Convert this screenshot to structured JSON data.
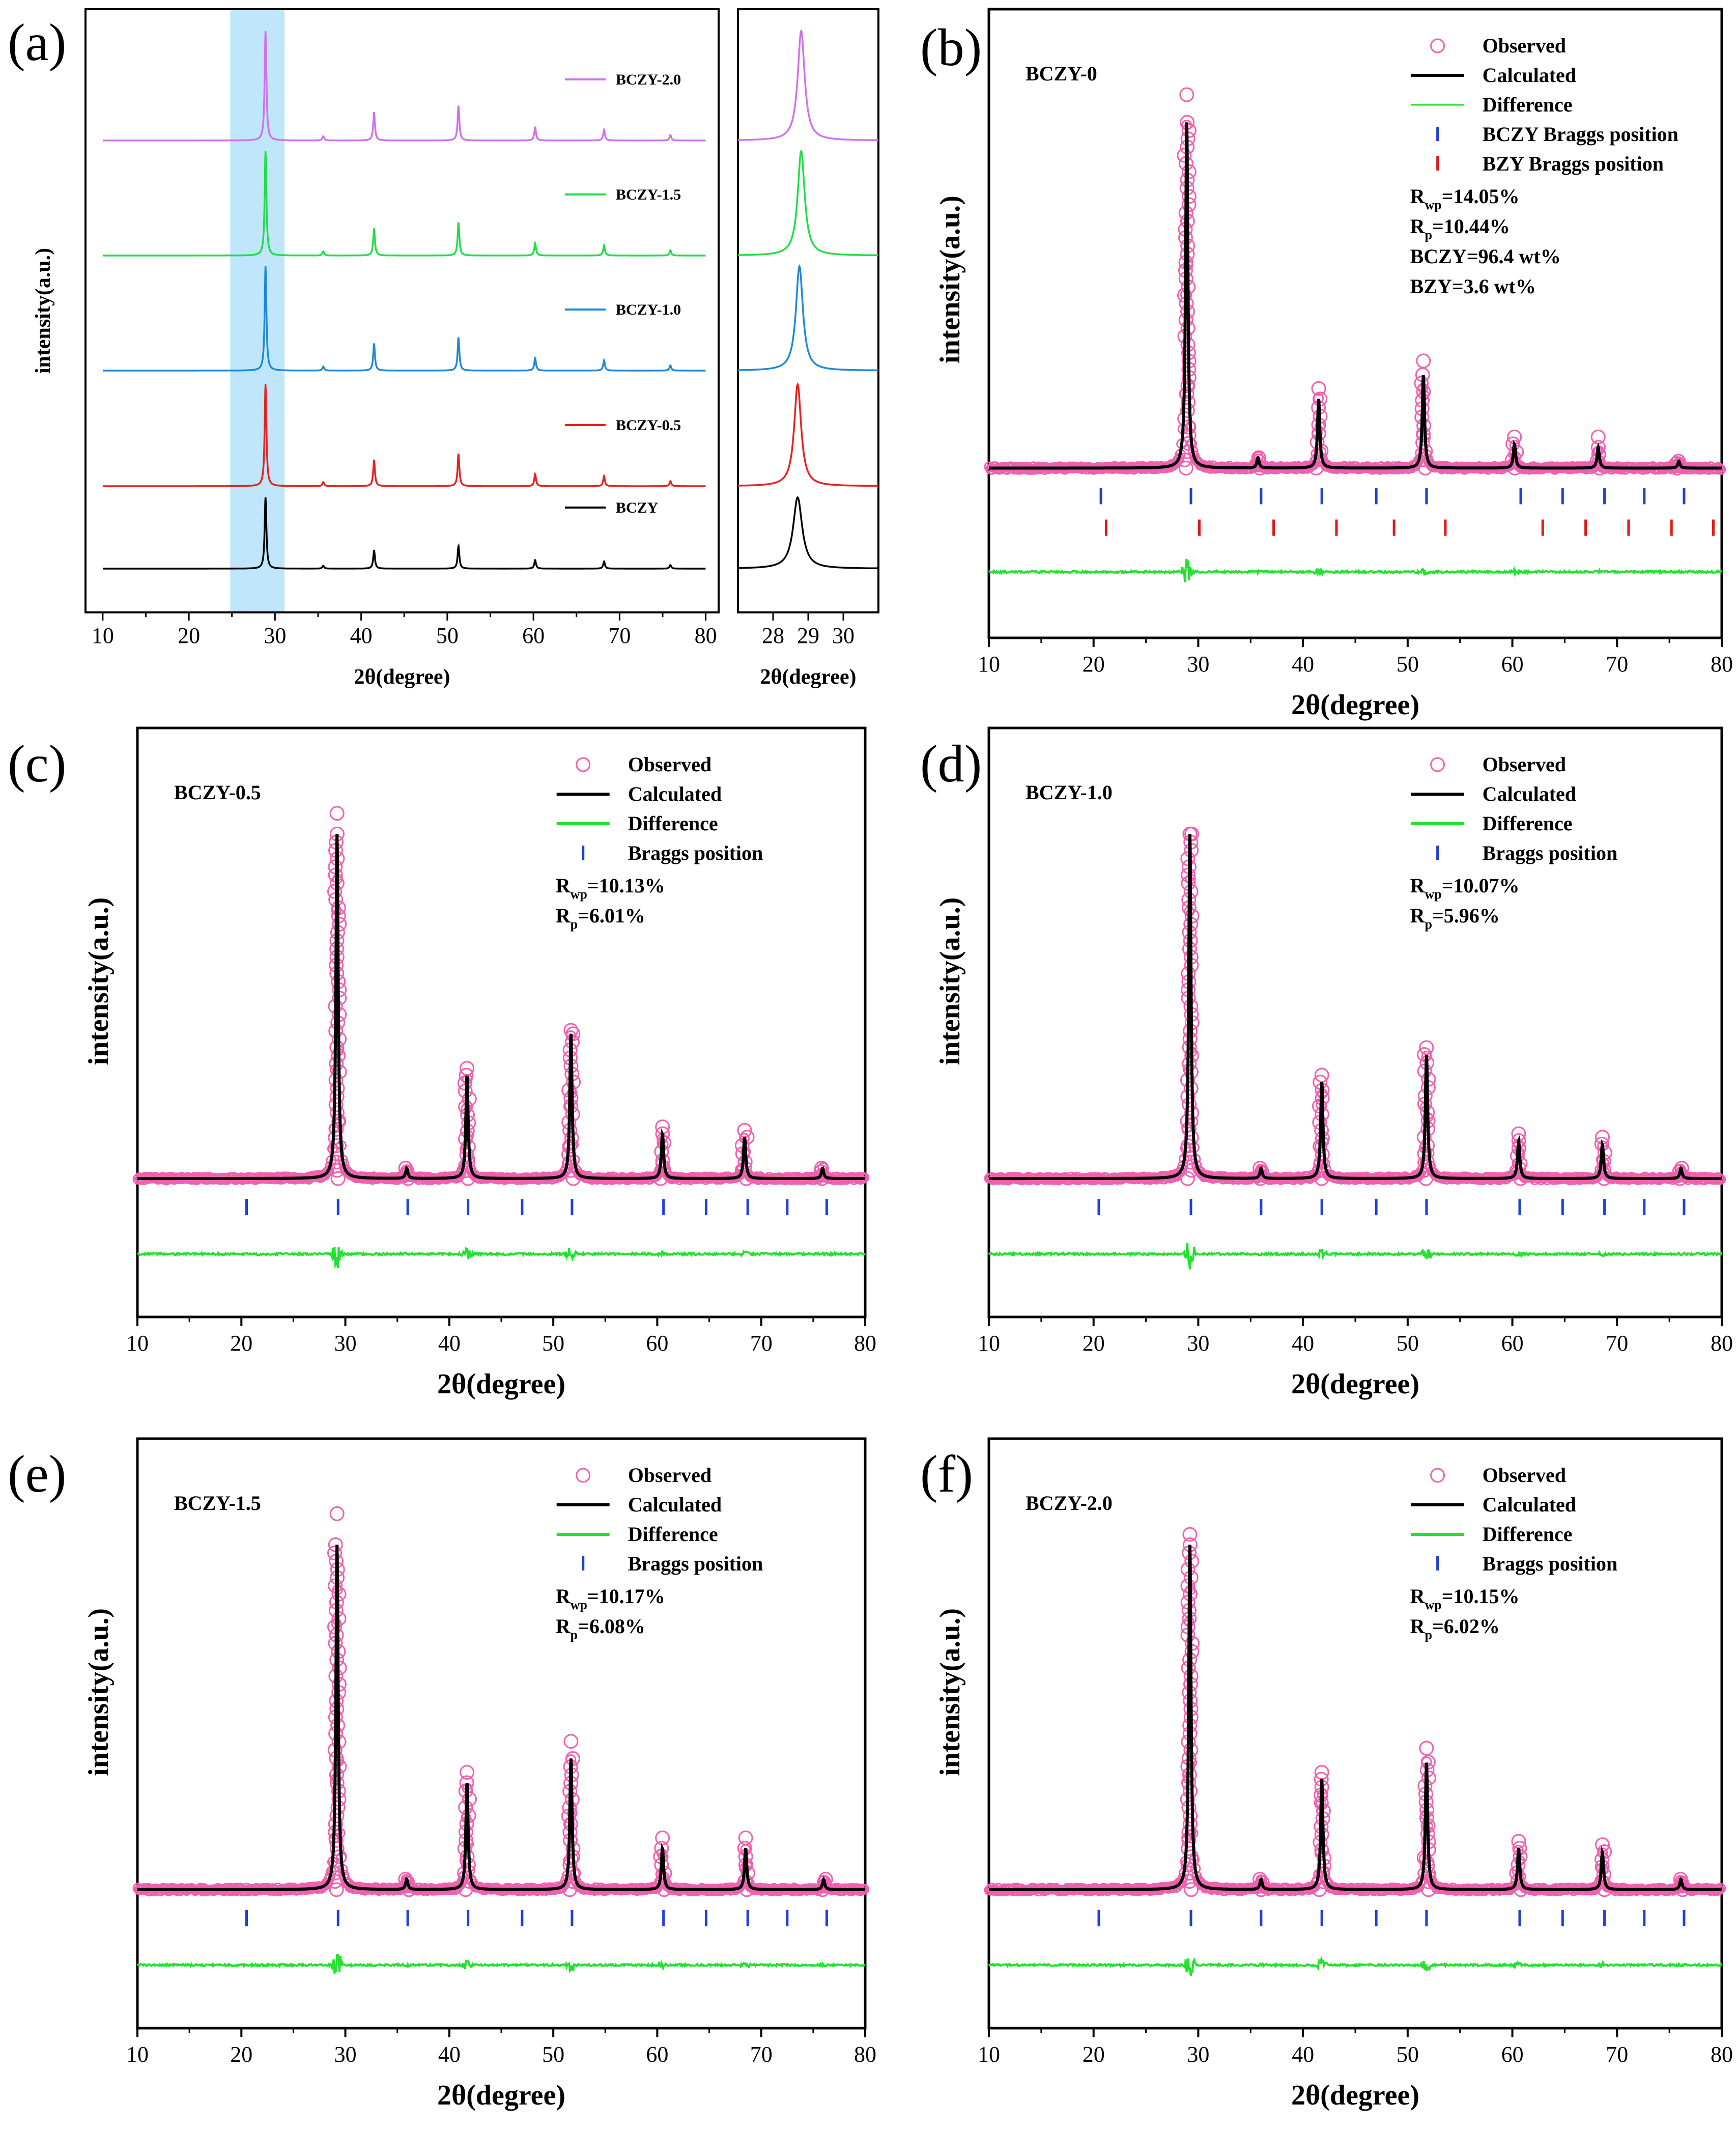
{
  "colors": {
    "observed": "#f060b0",
    "calculated": "#000000",
    "difference": "#22e22e",
    "bragg_bczy": "#1f3fd8",
    "bragg_bzy": "#e01818",
    "highlight": "#bfe6fb",
    "s_bczy": "#000000",
    "s_05": "#e82020",
    "s_10": "#1e88d8",
    "s_15": "#22dd44",
    "s_20": "#d070f0"
  },
  "chart_data": [
    {
      "panel": "(a)",
      "type": "line",
      "xlabel": "2θ(degree)",
      "ylabel": "intensity(a.u.)",
      "xlim": [
        10,
        80
      ],
      "xticks": [
        "10",
        "20",
        "30",
        "40",
        "50",
        "60",
        "70",
        "80"
      ],
      "highlight_range": [
        26,
        32
      ],
      "inset": {
        "xlim": [
          27,
          31
        ],
        "xticks": [
          "28",
          "29",
          "30"
        ]
      },
      "peaks": [
        {
          "x": 28.9,
          "rel": 1.0
        },
        {
          "x": 35.6,
          "rel": 0.04
        },
        {
          "x": 41.5,
          "rel": 0.26
        },
        {
          "x": 51.3,
          "rel": 0.32
        },
        {
          "x": 60.2,
          "rel": 0.12
        },
        {
          "x": 68.2,
          "rel": 0.1
        },
        {
          "x": 75.9,
          "rel": 0.05
        }
      ],
      "series": [
        {
          "name": "BCZY-2.0",
          "inset_peak": 28.8
        },
        {
          "name": "BCZY-1.5",
          "inset_peak": 28.8
        },
        {
          "name": "BCZY-1.0",
          "inset_peak": 28.75
        },
        {
          "name": "BCZY-0.5",
          "inset_peak": 28.7
        },
        {
          "name": "BCZY",
          "inset_peak": 28.7
        }
      ]
    },
    {
      "panel": "(b)",
      "type": "scatter",
      "sample": "BCZY-0",
      "xlabel": "2θ(degree)",
      "ylabel": "intensity(a.u.)",
      "xlim": [
        10,
        80
      ],
      "xticks": [
        "10",
        "20",
        "30",
        "40",
        "50",
        "60",
        "70",
        "80"
      ],
      "legend": [
        {
          "label": "Observed",
          "kind": "circle"
        },
        {
          "label": "Calculated",
          "kind": "line_black"
        },
        {
          "label": "Difference",
          "kind": "line_green"
        },
        {
          "label": "BCZY Braggs position",
          "kind": "tick_blue"
        },
        {
          "label": "BZY Braggs position",
          "kind": "tick_red"
        }
      ],
      "stats": [
        {
          "main": "R",
          "sub": "wp",
          "rest": "=14.05%"
        },
        {
          "main": "R",
          "sub": "p",
          "rest": "=10.44%"
        },
        {
          "main": "BCZY=96.4 wt%",
          "sub": "",
          "rest": ""
        },
        {
          "main": "BZY=3.6 wt%",
          "sub": "",
          "rest": ""
        }
      ],
      "peaks": [
        {
          "x": 28.9,
          "rel": 1.0
        },
        {
          "x": 35.7,
          "rel": 0.03
        },
        {
          "x": 41.5,
          "rel": 0.2
        },
        {
          "x": 51.5,
          "rel": 0.27
        },
        {
          "x": 60.2,
          "rel": 0.07
        },
        {
          "x": 68.2,
          "rel": 0.06
        },
        {
          "x": 75.9,
          "rel": 0.02
        }
      ],
      "obs_extra": [
        1.08,
        0.23,
        0.31,
        0.09,
        0.09
      ],
      "bragg": [
        20.7,
        29.3,
        36.0,
        41.8,
        47.0,
        51.8,
        60.8,
        64.8,
        68.8,
        72.6,
        76.4
      ],
      "bragg_bzy": [
        21.2,
        30.1,
        37.2,
        43.2,
        48.7,
        53.6,
        62.9,
        67.0,
        71.1,
        75.2,
        79.2
      ]
    },
    {
      "panel": "(c)",
      "type": "scatter",
      "sample": "BCZY-0.5",
      "xlabel": "2θ(degree)",
      "ylabel": "intensity(a.u.)",
      "xlim": [
        10,
        80
      ],
      "xticks": [
        "10",
        "20",
        "30",
        "40",
        "50",
        "60",
        "70",
        "80"
      ],
      "legend": [
        {
          "label": "Observed",
          "kind": "circle"
        },
        {
          "label": "Calculated",
          "kind": "line_black"
        },
        {
          "label": "Difference",
          "kind": "line_green"
        },
        {
          "label": "Braggs position",
          "kind": "tick_blue"
        }
      ],
      "stats": [
        {
          "main": "R",
          "sub": "wp",
          "rest": "=10.13%"
        },
        {
          "main": "R",
          "sub": "p",
          "rest": "=6.01%"
        }
      ],
      "peaks": [
        {
          "x": 29.2,
          "rel": 1.0
        },
        {
          "x": 35.9,
          "rel": 0.03
        },
        {
          "x": 41.7,
          "rel": 0.3
        },
        {
          "x": 51.7,
          "rel": 0.42
        },
        {
          "x": 60.5,
          "rel": 0.13
        },
        {
          "x": 68.4,
          "rel": 0.12
        },
        {
          "x": 75.9,
          "rel": 0.03
        }
      ],
      "obs_extra": [
        1.06,
        0.32,
        0.43,
        0.15,
        0.14
      ],
      "bragg": [
        20.5,
        29.3,
        36.0,
        41.8,
        47.0,
        51.8,
        60.6,
        64.7,
        68.7,
        72.5,
        76.3
      ]
    },
    {
      "panel": "(d)",
      "type": "scatter",
      "sample": "BCZY-1.0",
      "xlabel": "2θ(degree)",
      "ylabel": "intensity(a.u.)",
      "xlim": [
        10,
        80
      ],
      "xticks": [
        "10",
        "20",
        "30",
        "40",
        "50",
        "60",
        "70",
        "80"
      ],
      "legend": [
        {
          "label": "Observed",
          "kind": "circle"
        },
        {
          "label": "Calculated",
          "kind": "line_black"
        },
        {
          "label": "Difference",
          "kind": "line_green"
        },
        {
          "label": "Braggs position",
          "kind": "tick_blue"
        }
      ],
      "stats": [
        {
          "main": "R",
          "sub": "wp",
          "rest": "=10.07%"
        },
        {
          "main": "R",
          "sub": "p",
          "rest": "=5.96%"
        }
      ],
      "peaks": [
        {
          "x": 29.2,
          "rel": 1.0
        },
        {
          "x": 36.0,
          "rel": 0.03
        },
        {
          "x": 41.8,
          "rel": 0.28
        },
        {
          "x": 51.8,
          "rel": 0.36
        },
        {
          "x": 60.6,
          "rel": 0.11
        },
        {
          "x": 68.6,
          "rel": 0.1
        },
        {
          "x": 76.1,
          "rel": 0.03
        }
      ],
      "obs_extra": [
        1.0,
        0.3,
        0.38,
        0.13,
        0.12
      ],
      "bragg": [
        20.5,
        29.3,
        36.0,
        41.8,
        47.0,
        51.8,
        60.7,
        64.8,
        68.8,
        72.6,
        76.4
      ]
    },
    {
      "panel": "(e)",
      "type": "scatter",
      "sample": "BCZY-1.5",
      "xlabel": "2θ(degree)",
      "ylabel": "intensity(a.u.)",
      "xlim": [
        10,
        80
      ],
      "xticks": [
        "10",
        "20",
        "30",
        "40",
        "50",
        "60",
        "70",
        "80"
      ],
      "legend": [
        {
          "label": "Observed",
          "kind": "circle"
        },
        {
          "label": "Calculated",
          "kind": "line_black"
        },
        {
          "label": "Difference",
          "kind": "line_green"
        },
        {
          "label": "Braggs position",
          "kind": "tick_blue"
        }
      ],
      "stats": [
        {
          "main": "R",
          "sub": "wp",
          "rest": "=10.17%"
        },
        {
          "main": "R",
          "sub": "p",
          "rest": "=6.08%"
        }
      ],
      "peaks": [
        {
          "x": 29.2,
          "rel": 1.0
        },
        {
          "x": 35.9,
          "rel": 0.03
        },
        {
          "x": 41.7,
          "rel": 0.31
        },
        {
          "x": 51.7,
          "rel": 0.38
        },
        {
          "x": 60.5,
          "rel": 0.12
        },
        {
          "x": 68.5,
          "rel": 0.12
        },
        {
          "x": 76.0,
          "rel": 0.03
        }
      ],
      "obs_extra": [
        1.09,
        0.34,
        0.43,
        0.15,
        0.15
      ],
      "bragg": [
        20.5,
        29.3,
        36.0,
        41.8,
        47.0,
        51.8,
        60.6,
        64.7,
        68.7,
        72.5,
        76.3
      ]
    },
    {
      "panel": "(f)",
      "type": "scatter",
      "sample": "BCZY-2.0",
      "xlabel": "2θ(degree)",
      "ylabel": "intensity(a.u.)",
      "xlim": [
        10,
        80
      ],
      "xticks": [
        "10",
        "20",
        "30",
        "40",
        "50",
        "60",
        "70",
        "80"
      ],
      "legend": [
        {
          "label": "Observed",
          "kind": "circle"
        },
        {
          "label": "Calculated",
          "kind": "line_black"
        },
        {
          "label": "Difference",
          "kind": "line_green"
        },
        {
          "label": "Braggs position",
          "kind": "tick_blue"
        }
      ],
      "stats": [
        {
          "main": "R",
          "sub": "wp",
          "rest": "=10.15%"
        },
        {
          "main": "R",
          "sub": "p",
          "rest": "=6.02%"
        }
      ],
      "peaks": [
        {
          "x": 29.2,
          "rel": 1.0
        },
        {
          "x": 36.0,
          "rel": 0.03
        },
        {
          "x": 41.8,
          "rel": 0.32
        },
        {
          "x": 51.8,
          "rel": 0.37
        },
        {
          "x": 60.6,
          "rel": 0.12
        },
        {
          "x": 68.6,
          "rel": 0.11
        },
        {
          "x": 76.1,
          "rel": 0.03
        }
      ],
      "obs_extra": [
        1.03,
        0.34,
        0.41,
        0.14,
        0.13
      ],
      "bragg": [
        20.5,
        29.3,
        36.0,
        41.8,
        47.0,
        51.8,
        60.7,
        64.8,
        68.8,
        72.6,
        76.4
      ]
    }
  ]
}
